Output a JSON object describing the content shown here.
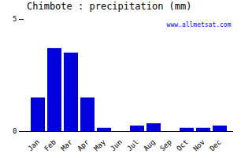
{
  "chart_data": {
    "type": "bar",
    "title": "Chimbote : precipitation (mm)",
    "categories": [
      "Jan",
      "Feb",
      "Mar",
      "Apr",
      "May",
      "Jun",
      "Jul",
      "Aug",
      "Sep",
      "Oct",
      "Nov",
      "Dec"
    ],
    "values": [
      1.5,
      3.7,
      3.5,
      1.5,
      0.15,
      0.0,
      0.25,
      0.35,
      0.0,
      0.15,
      0.15,
      0.25
    ],
    "color": "#0000dd",
    "ylim": [
      0,
      5
    ],
    "yticks": [
      0,
      5
    ],
    "grid": false,
    "annotations": [
      "www.allmetsat.com"
    ]
  }
}
